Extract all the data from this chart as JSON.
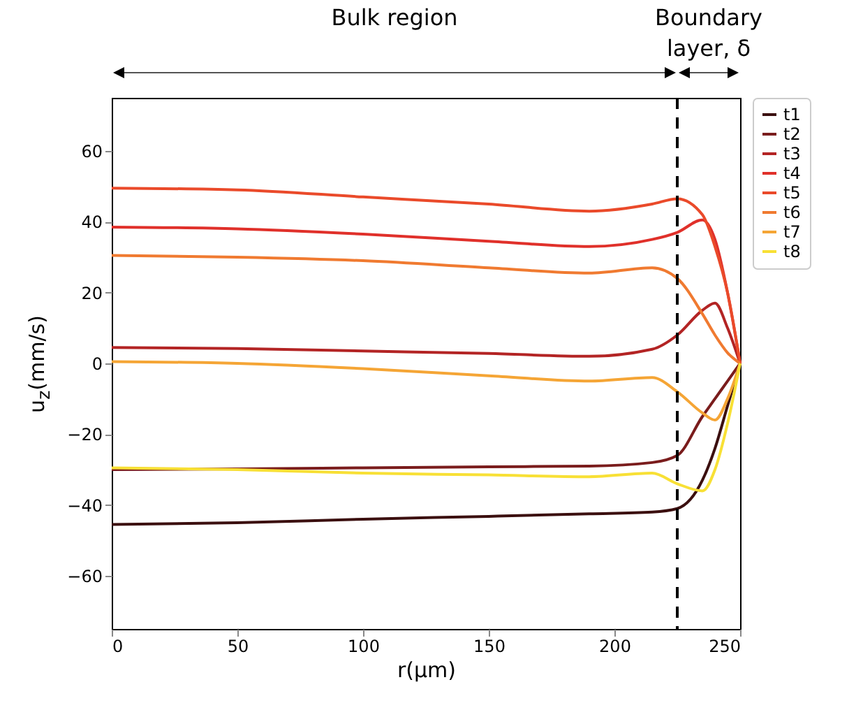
{
  "chart_data": {
    "type": "line",
    "xlabel": "r(μm)",
    "ylabel": "u$_{z}$(mm/s)",
    "x": [
      0,
      50,
      100,
      150,
      190,
      215,
      225,
      235,
      240,
      245,
      250
    ],
    "series": [
      {
        "name": "t1",
        "color": "#3b0f0f",
        "values": [
          -45.5,
          -45,
          -44,
          -43.2,
          -42.5,
          -42,
          -41,
          -33,
          -24,
          -12,
          0
        ]
      },
      {
        "name": "t2",
        "color": "#7a1c1c",
        "values": [
          -30,
          -29.8,
          -29.5,
          -29.2,
          -29,
          -28,
          -26,
          -15,
          -10,
          -5,
          0
        ]
      },
      {
        "name": "t3",
        "color": "#b32424",
        "values": [
          4.5,
          4.2,
          3.5,
          2.8,
          2,
          4,
          8,
          15,
          17,
          10,
          0
        ]
      },
      {
        "name": "t4",
        "color": "#e0302a",
        "values": [
          38.5,
          38,
          36.5,
          34.5,
          33,
          35,
          37,
          40.5,
          35,
          20,
          0
        ]
      },
      {
        "name": "t5",
        "color": "#ea4a2a",
        "values": [
          49.5,
          49,
          47,
          45,
          43,
          45,
          46.5,
          42,
          33,
          20,
          0
        ]
      },
      {
        "name": "t6",
        "color": "#f07a30",
        "values": [
          30.5,
          30,
          29,
          27,
          25.5,
          27,
          24,
          14,
          8,
          3,
          0
        ]
      },
      {
        "name": "t7",
        "color": "#f5a535",
        "values": [
          0.5,
          0,
          -1.5,
          -3.5,
          -5,
          -4,
          -8,
          -14,
          -16,
          -10,
          0
        ]
      },
      {
        "name": "t8",
        "color": "#f8e035",
        "values": [
          -29.5,
          -30,
          -31,
          -31.5,
          -32,
          -31,
          -34,
          -36,
          -30,
          -17,
          0
        ]
      }
    ],
    "xlim": [
      0,
      250
    ],
    "ylim": [
      -75,
      75
    ],
    "xticks": [
      0,
      50,
      100,
      150,
      200,
      250
    ],
    "yticks": [
      -60,
      -40,
      -20,
      0,
      20,
      40,
      60
    ],
    "ref_lines": [
      {
        "axis": "x",
        "value": 225,
        "line_style": "dashed",
        "color": "#000000"
      }
    ],
    "annotations": [
      "Bulk region",
      "Boundary layer, δ"
    ],
    "grid": false,
    "legend": "top right"
  }
}
